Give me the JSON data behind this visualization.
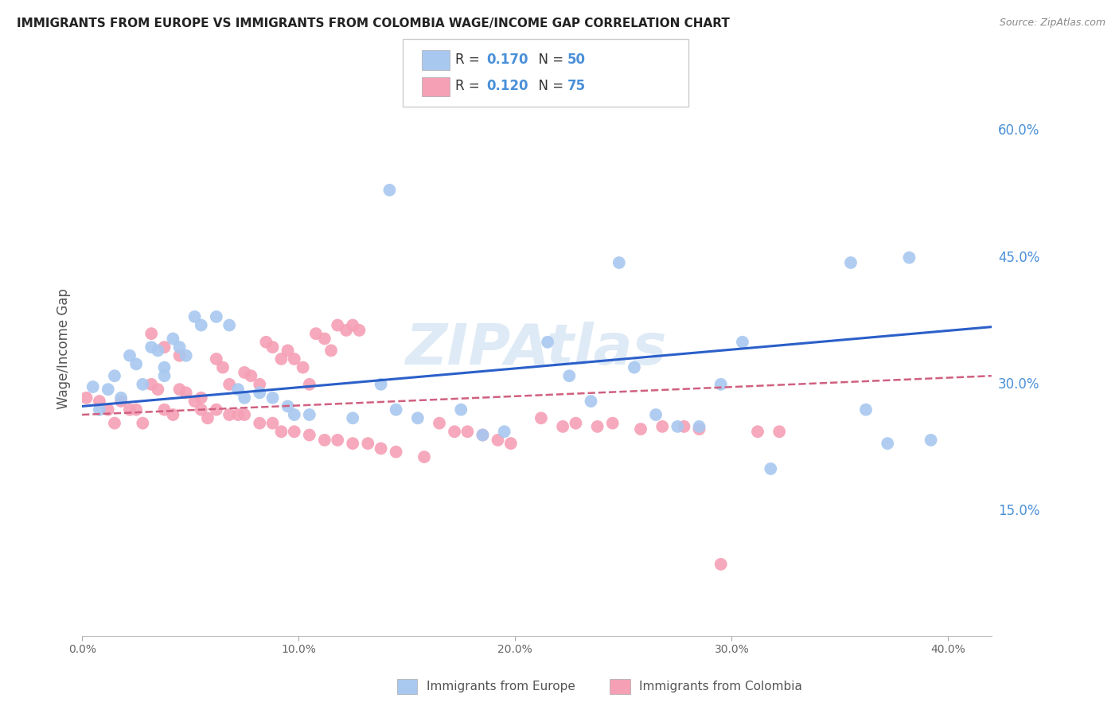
{
  "title": "IMMIGRANTS FROM EUROPE VS IMMIGRANTS FROM COLOMBIA WAGE/INCOME GAP CORRELATION CHART",
  "source": "Source: ZipAtlas.com",
  "ylabel": "Wage/Income Gap",
  "y_ticks": [
    0.0,
    0.15,
    0.3,
    0.45,
    0.6
  ],
  "y_tick_labels": [
    "",
    "15.0%",
    "30.0%",
    "45.0%",
    "60.0%"
  ],
  "x_ticks": [
    0.0,
    0.1,
    0.2,
    0.3,
    0.4
  ],
  "x_tick_labels": [
    "0.0%",
    "10.0%",
    "20.0%",
    "30.0%",
    "40.0%"
  ],
  "x_range": [
    0.0,
    0.42
  ],
  "y_range": [
    0.0,
    0.68
  ],
  "legend_europe_R": "R = 0.170",
  "legend_europe_N": "N = 50",
  "legend_colombia_R": "R = 0.120",
  "legend_colombia_N": "N = 75",
  "europe_color": "#A8C8F0",
  "europe_line_color": "#2B5FC9",
  "colombia_color": "#F5A0B5",
  "colombia_line_color": "#D06080",
  "background_color": "#FFFFFF",
  "grid_color": "#CCCCCC",
  "right_tick_color": "#4A90D9",
  "watermark_text": "ZIPAtlas",
  "watermark_color": "#C8DCEF",
  "bottom_legend_europe": "Immigrants from Europe",
  "bottom_legend_colombia": "Immigrants from Colombia",
  "europe_scatter_x": [
    0.005,
    0.008,
    0.012,
    0.015,
    0.018,
    0.022,
    0.025,
    0.028,
    0.032,
    0.035,
    0.038,
    0.038,
    0.042,
    0.045,
    0.048,
    0.052,
    0.055,
    0.062,
    0.068,
    0.072,
    0.075,
    0.082,
    0.088,
    0.095,
    0.098,
    0.105,
    0.125,
    0.138,
    0.145,
    0.155,
    0.175,
    0.185,
    0.195,
    0.215,
    0.225,
    0.235,
    0.255,
    0.265,
    0.275,
    0.285,
    0.295,
    0.305,
    0.318,
    0.355,
    0.362,
    0.372,
    0.382,
    0.392,
    0.142,
    0.248
  ],
  "europe_scatter_y": [
    0.295,
    0.268,
    0.292,
    0.308,
    0.282,
    0.332,
    0.322,
    0.298,
    0.342,
    0.338,
    0.318,
    0.308,
    0.352,
    0.342,
    0.332,
    0.378,
    0.368,
    0.378,
    0.368,
    0.292,
    0.282,
    0.288,
    0.282,
    0.272,
    0.262,
    0.262,
    0.258,
    0.298,
    0.268,
    0.258,
    0.268,
    0.238,
    0.242,
    0.348,
    0.308,
    0.278,
    0.318,
    0.262,
    0.248,
    0.248,
    0.298,
    0.348,
    0.198,
    0.442,
    0.268,
    0.228,
    0.448,
    0.232,
    0.528,
    0.442
  ],
  "colombia_scatter_x": [
    0.002,
    0.008,
    0.012,
    0.015,
    0.018,
    0.022,
    0.025,
    0.028,
    0.032,
    0.035,
    0.038,
    0.042,
    0.045,
    0.048,
    0.052,
    0.055,
    0.058,
    0.062,
    0.065,
    0.068,
    0.072,
    0.075,
    0.078,
    0.082,
    0.085,
    0.088,
    0.092,
    0.095,
    0.098,
    0.102,
    0.105,
    0.108,
    0.112,
    0.115,
    0.118,
    0.122,
    0.125,
    0.128,
    0.032,
    0.038,
    0.045,
    0.055,
    0.062,
    0.068,
    0.075,
    0.082,
    0.088,
    0.092,
    0.098,
    0.105,
    0.112,
    0.118,
    0.125,
    0.132,
    0.138,
    0.145,
    0.158,
    0.165,
    0.172,
    0.178,
    0.185,
    0.192,
    0.198,
    0.212,
    0.222,
    0.228,
    0.238,
    0.245,
    0.258,
    0.268,
    0.278,
    0.285,
    0.295,
    0.312,
    0.322
  ],
  "colombia_scatter_y": [
    0.282,
    0.278,
    0.268,
    0.252,
    0.278,
    0.268,
    0.268,
    0.252,
    0.298,
    0.292,
    0.268,
    0.262,
    0.292,
    0.288,
    0.278,
    0.268,
    0.258,
    0.328,
    0.318,
    0.298,
    0.262,
    0.312,
    0.308,
    0.298,
    0.348,
    0.342,
    0.328,
    0.338,
    0.328,
    0.318,
    0.298,
    0.358,
    0.352,
    0.338,
    0.368,
    0.362,
    0.368,
    0.362,
    0.358,
    0.342,
    0.332,
    0.282,
    0.268,
    0.262,
    0.262,
    0.252,
    0.252,
    0.242,
    0.242,
    0.238,
    0.232,
    0.232,
    0.228,
    0.228,
    0.222,
    0.218,
    0.212,
    0.252,
    0.242,
    0.242,
    0.238,
    0.232,
    0.228,
    0.258,
    0.248,
    0.252,
    0.248,
    0.252,
    0.245,
    0.248,
    0.248,
    0.245,
    0.085,
    0.242,
    0.242
  ],
  "europe_trend_x": [
    0.0,
    0.42
  ],
  "europe_trend_y": [
    0.272,
    0.366
  ],
  "colombia_trend_x": [
    0.0,
    0.42
  ],
  "colombia_trend_y": [
    0.262,
    0.308
  ]
}
